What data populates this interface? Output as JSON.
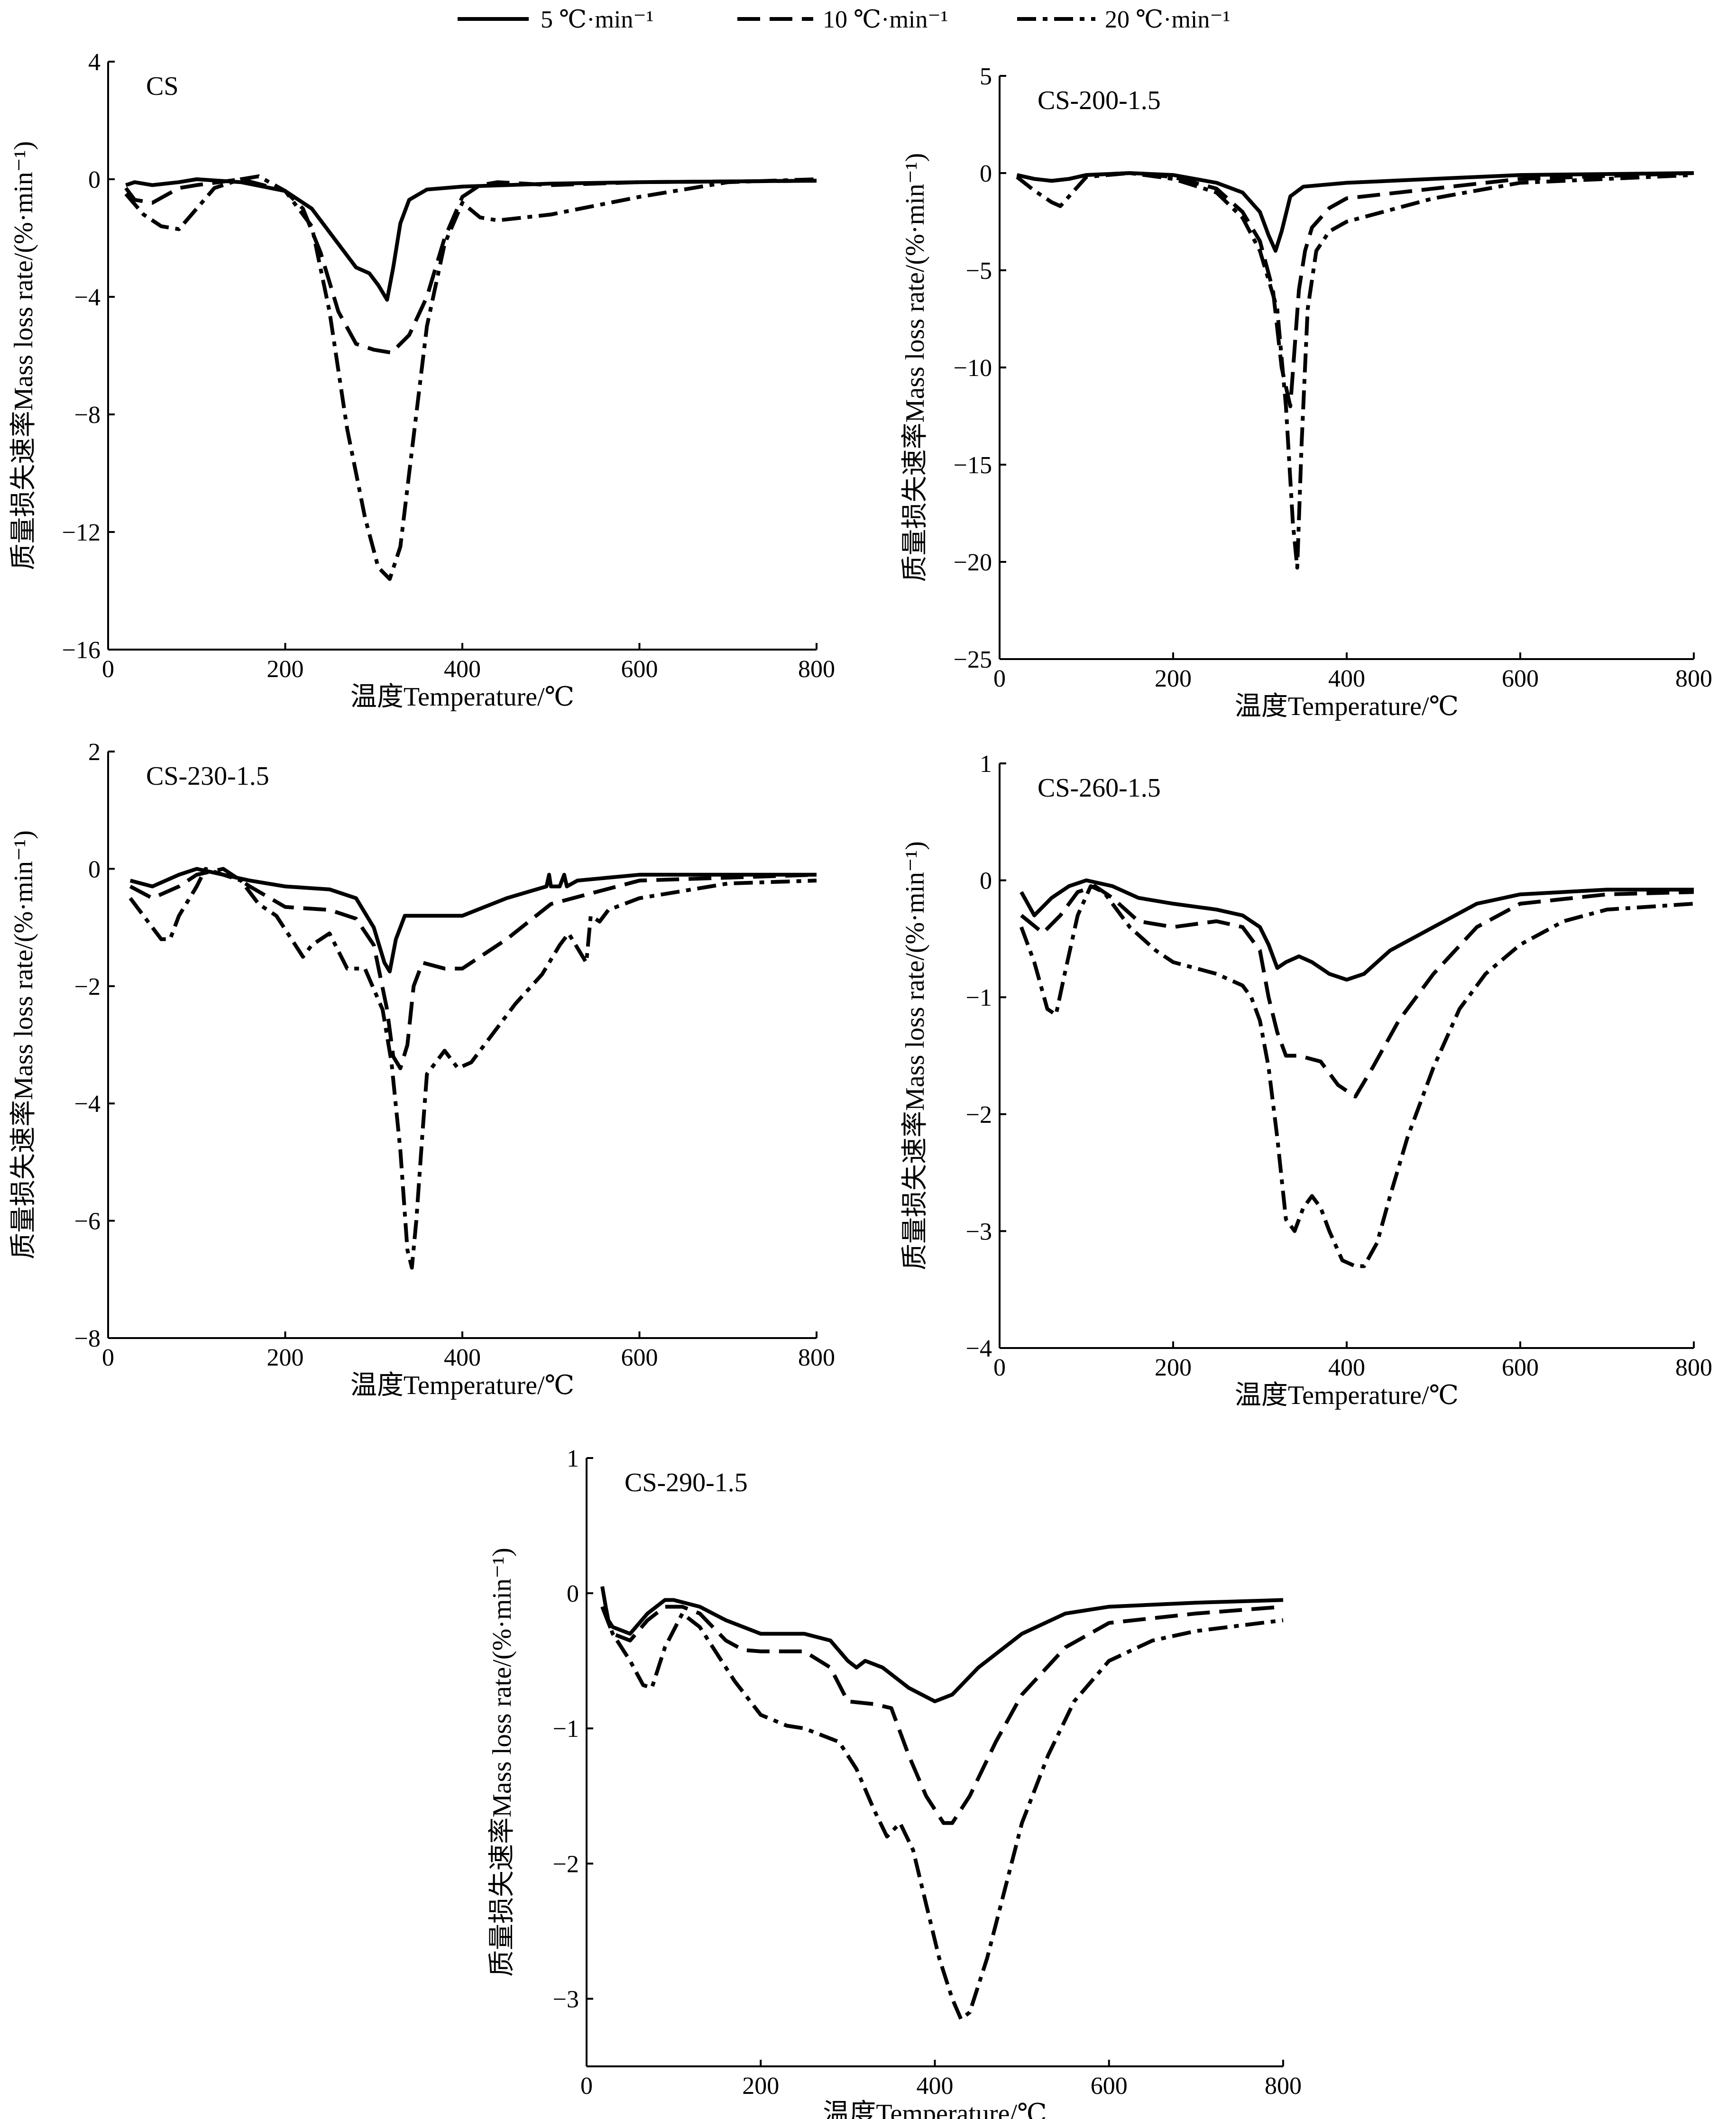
{
  "legend": {
    "items": [
      {
        "label": "5 ℃·min⁻¹",
        "style": "solid"
      },
      {
        "label": "10 ℃·min⁻¹",
        "style": "dashed"
      },
      {
        "label": "20 ℃·min⁻¹",
        "style": "dashdot"
      }
    ]
  },
  "chart_data": [
    {
      "type": "line",
      "title": "CS",
      "xlabel": "温度Temperature/℃",
      "ylabel": "质量损失速率Mass loss rate/(%·min⁻¹)",
      "xlim": [
        0,
        800
      ],
      "ylim": [
        -16,
        4
      ],
      "xticks": [
        0,
        200,
        400,
        600,
        800
      ],
      "yticks": [
        4,
        0,
        -4,
        -8,
        -12,
        -16
      ],
      "series": [
        {
          "name": "5 ℃·min⁻¹",
          "style": "solid",
          "x": [
            20,
            30,
            50,
            80,
            100,
            150,
            200,
            230,
            260,
            280,
            295,
            305,
            315,
            322,
            330,
            340,
            360,
            400,
            500,
            600,
            800
          ],
          "y": [
            -0.2,
            -0.1,
            -0.2,
            -0.1,
            0,
            -0.1,
            -0.4,
            -1.0,
            -2.2,
            -3.0,
            -3.2,
            -3.6,
            -4.1,
            -3.0,
            -1.5,
            -0.7,
            -0.35,
            -0.25,
            -0.15,
            -0.1,
            -0.05
          ]
        },
        {
          "name": "10 ℃·min⁻¹",
          "style": "dashed",
          "x": [
            20,
            30,
            50,
            80,
            100,
            150,
            200,
            220,
            240,
            260,
            280,
            300,
            320,
            340,
            360,
            380,
            400,
            420,
            440,
            500,
            600,
            800
          ],
          "y": [
            -0.3,
            -0.7,
            -0.8,
            -0.3,
            -0.2,
            0,
            -0.4,
            -1.0,
            -2.5,
            -4.5,
            -5.6,
            -5.8,
            -5.9,
            -5.3,
            -4.0,
            -2.0,
            -0.6,
            -0.2,
            -0.1,
            -0.2,
            -0.1,
            -0.05
          ]
        },
        {
          "name": "20 ℃·min⁻¹",
          "style": "dashdot",
          "x": [
            20,
            40,
            60,
            80,
            100,
            120,
            150,
            170,
            200,
            230,
            250,
            270,
            290,
            305,
            318,
            330,
            340,
            360,
            380,
            400,
            420,
            440,
            500,
            600,
            700,
            800
          ],
          "y": [
            -0.5,
            -1.2,
            -1.6,
            -1.7,
            -1.0,
            -0.3,
            0,
            0.1,
            -0.4,
            -1.6,
            -4.5,
            -8.5,
            -11.5,
            -13.2,
            -13.6,
            -12.5,
            -10.0,
            -5.0,
            -2.2,
            -0.8,
            -1.3,
            -1.4,
            -1.2,
            -0.6,
            -0.1,
            0
          ]
        }
      ]
    },
    {
      "type": "line",
      "title": "CS-200-1.5",
      "xlabel": "温度Temperature/℃",
      "ylabel": "质量损失速率Mass loss rate/(%·min⁻¹)",
      "xlim": [
        0,
        800
      ],
      "ylim": [
        -25,
        5
      ],
      "xticks": [
        0,
        200,
        400,
        600,
        800
      ],
      "yticks": [
        5,
        0,
        -5,
        -10,
        -15,
        -20,
        -25
      ],
      "series": [
        {
          "name": "5 ℃·min⁻¹",
          "style": "solid",
          "x": [
            20,
            40,
            60,
            80,
            100,
            150,
            200,
            250,
            280,
            300,
            310,
            318,
            325,
            335,
            350,
            400,
            500,
            600,
            800
          ],
          "y": [
            -0.1,
            -0.3,
            -0.4,
            -0.3,
            -0.1,
            0,
            -0.1,
            -0.5,
            -1.0,
            -2.0,
            -3.2,
            -4.0,
            -3.0,
            -1.2,
            -0.7,
            -0.5,
            -0.3,
            -0.1,
            0
          ]
        },
        {
          "name": "10 ℃·min⁻¹",
          "style": "dashed",
          "x": [
            20,
            40,
            60,
            80,
            100,
            150,
            200,
            250,
            280,
            300,
            315,
            325,
            335,
            340,
            345,
            352,
            360,
            380,
            400,
            500,
            600,
            800
          ],
          "y": [
            -0.1,
            -0.3,
            -0.4,
            -0.3,
            -0.1,
            0,
            -0.2,
            -0.8,
            -2.0,
            -3.5,
            -6.0,
            -10.0,
            -12.0,
            -9.0,
            -6.0,
            -4.0,
            -2.8,
            -1.8,
            -1.3,
            -0.8,
            -0.3,
            0
          ]
        },
        {
          "name": "20 ℃·min⁻¹",
          "style": "dashdot",
          "x": [
            20,
            40,
            60,
            70,
            80,
            100,
            150,
            200,
            250,
            280,
            300,
            320,
            330,
            338,
            343,
            348,
            355,
            365,
            380,
            400,
            500,
            600,
            800
          ],
          "y": [
            -0.2,
            -0.9,
            -1.5,
            -1.7,
            -1.2,
            -0.2,
            0,
            -0.3,
            -1.0,
            -2.3,
            -4.0,
            -7.0,
            -12.0,
            -18.0,
            -20.3,
            -14.0,
            -7.0,
            -4.0,
            -3.0,
            -2.5,
            -1.3,
            -0.5,
            -0.1
          ]
        }
      ]
    },
    {
      "type": "line",
      "title": "CS-230-1.5",
      "xlabel": "温度Temperature/℃",
      "ylabel": "质量损失速率Mass loss rate/(%·min⁻¹)",
      "xlim": [
        0,
        800
      ],
      "ylim": [
        -8,
        2
      ],
      "xticks": [
        0,
        200,
        400,
        600,
        800
      ],
      "yticks": [
        2,
        0,
        -2,
        -4,
        -6,
        -8
      ],
      "series": [
        {
          "name": "5 ℃·min⁻¹",
          "style": "solid",
          "x": [
            25,
            50,
            80,
            100,
            130,
            160,
            200,
            250,
            280,
            300,
            312,
            318,
            325,
            335,
            360,
            400,
            450,
            495,
            498,
            500,
            510,
            515,
            518,
            530,
            600,
            700,
            800
          ],
          "y": [
            -0.2,
            -0.3,
            -0.1,
            0,
            -0.1,
            -0.2,
            -0.3,
            -0.35,
            -0.5,
            -1.0,
            -1.6,
            -1.75,
            -1.2,
            -0.8,
            -0.8,
            -0.8,
            -0.5,
            -0.3,
            -0.1,
            -0.3,
            -0.3,
            -0.1,
            -0.3,
            -0.2,
            -0.1,
            -0.1,
            -0.1
          ]
        },
        {
          "name": "10 ℃·min⁻¹",
          "style": "dashed",
          "x": [
            25,
            50,
            80,
            100,
            130,
            160,
            200,
            250,
            280,
            300,
            315,
            322,
            330,
            338,
            345,
            355,
            380,
            400,
            450,
            500,
            600,
            700,
            800
          ],
          "y": [
            -0.3,
            -0.5,
            -0.3,
            -0.1,
            0,
            -0.3,
            -0.65,
            -0.7,
            -0.85,
            -1.3,
            -2.4,
            -3.2,
            -3.4,
            -3.0,
            -2.0,
            -1.6,
            -1.7,
            -1.7,
            -1.2,
            -0.6,
            -0.2,
            -0.15,
            -0.1
          ]
        },
        {
          "name": "20 ℃·min⁻¹",
          "style": "dashdot",
          "x": [
            25,
            45,
            60,
            70,
            80,
            100,
            110,
            130,
            150,
            170,
            190,
            220,
            230,
            240,
            250,
            270,
            290,
            310,
            320,
            330,
            338,
            343,
            348,
            355,
            360,
            370,
            380,
            395,
            410,
            430,
            460,
            490,
            510,
            520,
            540,
            545,
            555,
            565,
            600,
            700,
            800
          ],
          "y": [
            -0.5,
            -0.9,
            -1.2,
            -1.2,
            -0.8,
            -0.3,
            0,
            -0.1,
            -0.2,
            -0.6,
            -0.8,
            -1.5,
            -1.3,
            -1.2,
            -1.1,
            -1.7,
            -1.7,
            -2.4,
            -3.3,
            -4.8,
            -6.5,
            -6.8,
            -6.0,
            -4.5,
            -3.5,
            -3.3,
            -3.1,
            -3.4,
            -3.3,
            -2.9,
            -2.3,
            -1.8,
            -1.3,
            -1.1,
            -1.6,
            -0.8,
            -0.9,
            -0.7,
            -0.5,
            -0.25,
            -0.2
          ]
        }
      ]
    },
    {
      "type": "line",
      "title": "CS-260-1.5",
      "xlabel": "温度Temperature/℃",
      "ylabel": "质量损失速率Mass loss rate/(%·min⁻¹)",
      "xlim": [
        0,
        800
      ],
      "ylim": [
        -4,
        1
      ],
      "xticks": [
        0,
        200,
        400,
        600,
        800
      ],
      "yticks": [
        1,
        0,
        -1,
        -2,
        -3,
        -4
      ],
      "series": [
        {
          "name": "5 ℃·min⁻¹",
          "style": "solid",
          "x": [
            25,
            40,
            60,
            80,
            100,
            130,
            160,
            200,
            250,
            280,
            300,
            310,
            320,
            330,
            345,
            360,
            380,
            400,
            420,
            450,
            500,
            550,
            600,
            700,
            800
          ],
          "y": [
            -0.1,
            -0.3,
            -0.15,
            -0.05,
            0,
            -0.05,
            -0.15,
            -0.2,
            -0.25,
            -0.3,
            -0.4,
            -0.55,
            -0.75,
            -0.7,
            -0.65,
            -0.7,
            -0.8,
            -0.85,
            -0.8,
            -0.6,
            -0.4,
            -0.2,
            -0.12,
            -0.08,
            -0.08
          ]
        },
        {
          "name": "10 ℃·min⁻¹",
          "style": "dashed",
          "x": [
            25,
            50,
            70,
            90,
            110,
            130,
            160,
            200,
            250,
            280,
            300,
            310,
            320,
            330,
            345,
            370,
            390,
            410,
            430,
            460,
            500,
            550,
            600,
            700,
            800
          ],
          "y": [
            -0.3,
            -0.45,
            -0.3,
            -0.1,
            -0.05,
            -0.15,
            -0.35,
            -0.4,
            -0.35,
            -0.4,
            -0.6,
            -1.0,
            -1.3,
            -1.5,
            -1.5,
            -1.55,
            -1.75,
            -1.85,
            -1.6,
            -1.2,
            -0.8,
            -0.4,
            -0.2,
            -0.12,
            -0.1
          ]
        },
        {
          "name": "20 ℃·min⁻¹",
          "style": "dashdot",
          "x": [
            25,
            40,
            55,
            65,
            75,
            90,
            105,
            120,
            150,
            180,
            200,
            250,
            280,
            290,
            300,
            310,
            320,
            330,
            340,
            350,
            360,
            370,
            380,
            395,
            410,
            420,
            435,
            450,
            470,
            500,
            530,
            560,
            600,
            650,
            700,
            800
          ],
          "y": [
            -0.4,
            -0.7,
            -1.1,
            -1.15,
            -0.8,
            -0.3,
            -0.05,
            -0.1,
            -0.4,
            -0.6,
            -0.7,
            -0.8,
            -0.9,
            -1.0,
            -1.2,
            -1.6,
            -2.2,
            -2.9,
            -3.0,
            -2.8,
            -2.7,
            -2.8,
            -3.0,
            -3.25,
            -3.3,
            -3.3,
            -3.1,
            -2.7,
            -2.2,
            -1.6,
            -1.1,
            -0.8,
            -0.55,
            -0.35,
            -0.25,
            -0.2
          ]
        }
      ]
    },
    {
      "type": "line",
      "title": "CS-290-1.5",
      "xlabel": "温度Temperature/℃",
      "ylabel": "质量损失速率Mass loss rate/(%·min⁻¹)",
      "xlim": [
        0,
        800
      ],
      "ylim": [
        -3.5,
        1
      ],
      "xticks": [
        0,
        200,
        400,
        600,
        800
      ],
      "yticks": [
        1,
        0,
        -1,
        -2,
        -3
      ],
      "series": [
        {
          "name": "5 ℃·min⁻¹",
          "style": "solid",
          "x": [
            18,
            22,
            25,
            30,
            50,
            70,
            90,
            100,
            130,
            160,
            200,
            250,
            280,
            300,
            310,
            320,
            340,
            370,
            400,
            420,
            450,
            500,
            550,
            600,
            700,
            800
          ],
          "y": [
            0.05,
            -0.1,
            -0.2,
            -0.25,
            -0.3,
            -0.15,
            -0.05,
            -0.05,
            -0.1,
            -0.2,
            -0.3,
            -0.3,
            -0.35,
            -0.5,
            -0.55,
            -0.5,
            -0.55,
            -0.7,
            -0.8,
            -0.75,
            -0.55,
            -0.3,
            -0.15,
            -0.1,
            -0.07,
            -0.05
          ]
        },
        {
          "name": "10 ℃·min⁻¹",
          "style": "dashed",
          "x": [
            18,
            30,
            50,
            70,
            90,
            110,
            130,
            160,
            180,
            200,
            250,
            280,
            300,
            330,
            350,
            370,
            390,
            410,
            420,
            440,
            470,
            500,
            550,
            600,
            700,
            800
          ],
          "y": [
            -0.1,
            -0.3,
            -0.35,
            -0.2,
            -0.1,
            -0.1,
            -0.15,
            -0.35,
            -0.42,
            -0.43,
            -0.43,
            -0.55,
            -0.8,
            -0.82,
            -0.85,
            -1.2,
            -1.5,
            -1.7,
            -1.7,
            -1.5,
            -1.1,
            -0.75,
            -0.4,
            -0.22,
            -0.15,
            -0.1
          ]
        },
        {
          "name": "20 ℃·min⁻¹",
          "style": "dashdot",
          "x": [
            18,
            30,
            50,
            65,
            75,
            90,
            110,
            130,
            150,
            170,
            200,
            230,
            250,
            270,
            290,
            310,
            330,
            345,
            360,
            375,
            390,
            405,
            420,
            430,
            440,
            460,
            480,
            500,
            530,
            560,
            600,
            650,
            700,
            800
          ],
          "y": [
            -0.1,
            -0.3,
            -0.5,
            -0.68,
            -0.7,
            -0.4,
            -0.15,
            -0.25,
            -0.45,
            -0.65,
            -0.9,
            -0.98,
            -1.0,
            -1.05,
            -1.1,
            -1.3,
            -1.6,
            -1.8,
            -1.7,
            -1.9,
            -2.3,
            -2.7,
            -3.0,
            -3.15,
            -3.1,
            -2.7,
            -2.2,
            -1.7,
            -1.2,
            -0.8,
            -0.5,
            -0.35,
            -0.28,
            -0.2
          ]
        }
      ]
    }
  ]
}
